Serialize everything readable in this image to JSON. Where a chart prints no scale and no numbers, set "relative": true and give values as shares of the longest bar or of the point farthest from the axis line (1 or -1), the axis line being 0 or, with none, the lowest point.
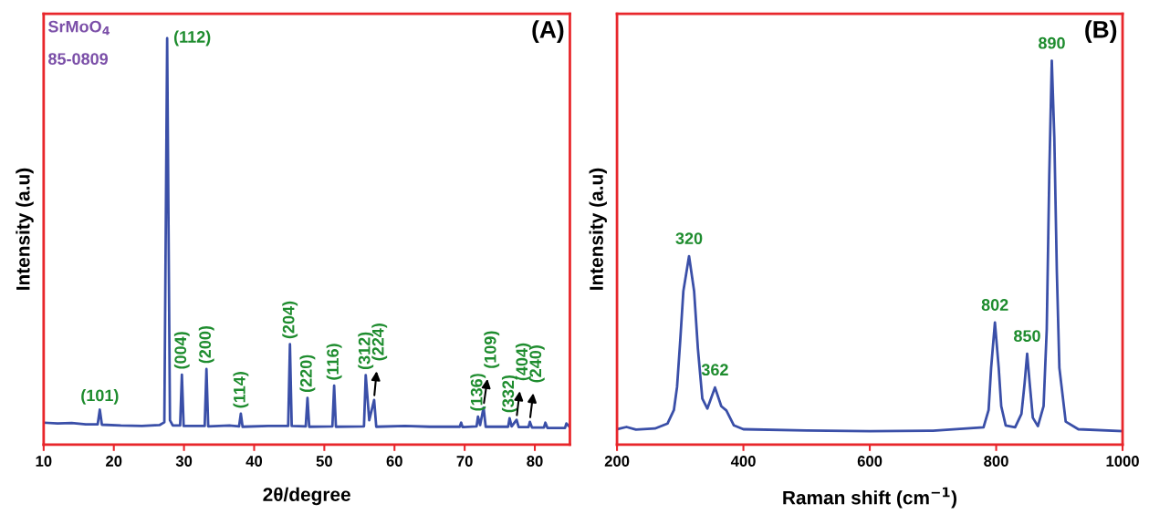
{
  "chart_data": [
    {
      "type": "line",
      "title": "(A)",
      "xlabel": "2θ/degree",
      "ylabel": "Intensity (a.u)",
      "relative": true,
      "xlim": [
        10,
        85
      ],
      "xticks": [
        10,
        20,
        30,
        40,
        50,
        60,
        70,
        80
      ],
      "tick_labels": "x",
      "grid": false,
      "legend": false,
      "series": [
        {
          "color": "#3a4fa8",
          "x": [
            10,
            12,
            14,
            16,
            17.7,
            18.0,
            18.3,
            21,
            24,
            26.5,
            27.2,
            27.6,
            28.0,
            28.4,
            29.45,
            29.7,
            29.95,
            32.95,
            33.2,
            33.45,
            36.5,
            37.85,
            38.1,
            38.35,
            42,
            44.85,
            45.1,
            45.35,
            47.35,
            47.6,
            47.85,
            51.15,
            51.4,
            51.65,
            55.65,
            55.9,
            56.4,
            57.1,
            57.4,
            61.5,
            65,
            69.3,
            69.5,
            69.7,
            71.7,
            71.9,
            72.2,
            72.7,
            73.0,
            76.2,
            76.4,
            76.7,
            77.4,
            77.7,
            79.1,
            79.3,
            79.6,
            81.3,
            81.5,
            81.8,
            84.3,
            84.5,
            85
          ],
          "values": [
            0.054,
            0.052,
            0.053,
            0.05,
            0.05,
            0.086,
            0.049,
            0.047,
            0.046,
            0.048,
            0.055,
            1.0,
            0.06,
            0.047,
            0.047,
            0.172,
            0.046,
            0.046,
            0.186,
            0.045,
            0.047,
            0.045,
            0.076,
            0.044,
            0.046,
            0.046,
            0.247,
            0.046,
            0.045,
            0.115,
            0.044,
            0.045,
            0.145,
            0.044,
            0.045,
            0.171,
            0.06,
            0.11,
            0.044,
            0.046,
            0.044,
            0.044,
            0.054,
            0.043,
            0.045,
            0.069,
            0.048,
            0.091,
            0.044,
            0.044,
            0.065,
            0.045,
            0.061,
            0.043,
            0.043,
            0.056,
            0.042,
            0.042,
            0.054,
            0.041,
            0.041,
            0.052,
            0.043
          ]
        }
      ],
      "annotations": [
        "SrMoO$_{4}$",
        "85-0809",
        {
          "text": "(101)",
          "x": 18.0,
          "y": 0.086
        },
        {
          "text": "(112)",
          "x": 27.6,
          "y": 1.0
        },
        {
          "text": "(004)",
          "x": 29.7,
          "y": 0.172
        },
        {
          "text": "(200)",
          "x": 33.2,
          "y": 0.186
        },
        {
          "text": "(114)",
          "x": 38.1,
          "y": 0.076
        },
        {
          "text": "(204)",
          "x": 45.1,
          "y": 0.247
        },
        {
          "text": "(220)",
          "x": 47.6,
          "y": 0.115
        },
        {
          "text": "(116)",
          "x": 51.4,
          "y": 0.145
        },
        {
          "text": "(312)",
          "x": 55.9,
          "y": 0.171
        },
        {
          "text": "(224)",
          "x": 57.1,
          "y": 0.11
        },
        {
          "text": "(136)",
          "x": 71.9,
          "y": 0.069
        },
        {
          "text": "(109)",
          "x": 72.7,
          "y": 0.091
        },
        {
          "text": "(332)",
          "x": 76.4,
          "y": 0.065
        },
        {
          "text": "(404)",
          "x": 77.4,
          "y": 0.061
        },
        {
          "text": "(240)",
          "x": 79.3,
          "y": 0.056
        }
      ]
    },
    {
      "type": "line",
      "title": "(B)",
      "xlabel": "Raman shift (cm$^{−1}$)",
      "ylabel": "Intensity (a.u)",
      "relative": true,
      "xlim": [
        200,
        1000
      ],
      "xticks": [
        200,
        400,
        600,
        800,
        1000
      ],
      "tick_labels": "x",
      "grid": false,
      "legend": false,
      "series": [
        {
          "color": "#3a4fa8",
          "x": [
            200,
            215,
            230,
            260,
            280,
            290,
            295,
            300,
            305,
            314,
            322,
            328,
            335,
            343,
            355,
            365,
            373,
            385,
            400,
            500,
            600,
            700,
            780,
            788,
            792,
            798,
            804,
            808,
            815,
            830,
            840,
            845,
            849,
            853,
            858,
            866,
            875,
            880,
            884,
            888,
            892,
            896,
            900,
            910,
            930,
            1000
          ],
          "values": [
            0.04,
            0.046,
            0.039,
            0.042,
            0.055,
            0.09,
            0.15,
            0.27,
            0.4,
            0.491,
            0.4,
            0.25,
            0.12,
            0.094,
            0.149,
            0.1,
            0.089,
            0.05,
            0.04,
            0.037,
            0.035,
            0.036,
            0.045,
            0.09,
            0.2,
            0.318,
            0.2,
            0.1,
            0.05,
            0.045,
            0.08,
            0.16,
            0.237,
            0.16,
            0.07,
            0.048,
            0.1,
            0.3,
            0.7,
            1.0,
            0.8,
            0.45,
            0.2,
            0.06,
            0.04,
            0.035
          ]
        }
      ],
      "annotations": [
        {
          "text": "320",
          "x": 314,
          "y": 0.491
        },
        {
          "text": "362",
          "x": 355,
          "y": 0.149
        },
        {
          "text": "802",
          "x": 798,
          "y": 0.318
        },
        {
          "text": "850",
          "x": 849,
          "y": 0.237
        },
        {
          "text": "890",
          "x": 888,
          "y": 1.0
        }
      ]
    }
  ]
}
